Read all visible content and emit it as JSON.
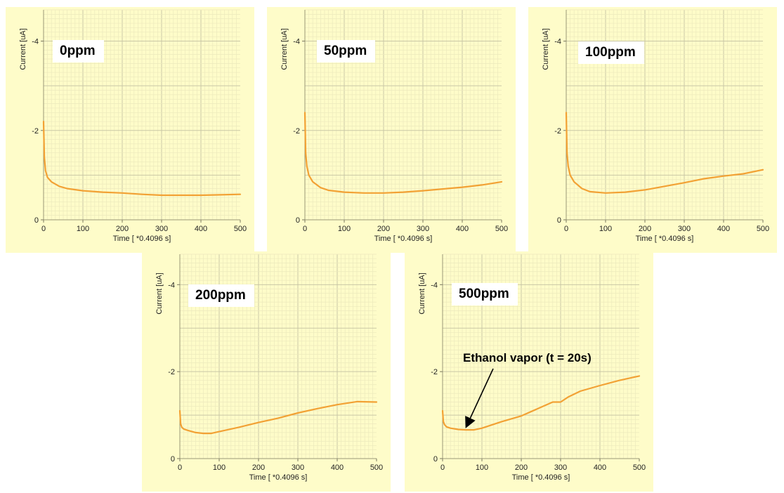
{
  "chart_data": [
    {
      "type": "line",
      "panel_label": "0ppm",
      "xlabel": "Time [ *0.4096 s]",
      "ylabel": "Current [uA]",
      "xlim": [
        0,
        500
      ],
      "ylim": [
        0,
        -4.7
      ],
      "xticks": [
        0,
        100,
        200,
        300,
        400,
        500
      ],
      "yticks": [
        0,
        -2,
        -4
      ],
      "xtick_labels": [
        "0",
        "100",
        "200",
        "300",
        "400",
        "500"
      ],
      "ytick_labels": [
        "0",
        "-2",
        "-4"
      ],
      "grid": true,
      "line_color": "#f2a134",
      "series": [
        {
          "x": [
            0,
            2,
            5,
            10,
            20,
            40,
            60,
            100,
            150,
            200,
            250,
            300,
            350,
            400,
            450,
            500
          ],
          "y": [
            -2.2,
            -1.4,
            -1.1,
            -0.95,
            -0.85,
            -0.75,
            -0.7,
            -0.65,
            -0.62,
            -0.6,
            -0.57,
            -0.55,
            -0.55,
            -0.55,
            -0.56,
            -0.57
          ]
        }
      ]
    },
    {
      "type": "line",
      "panel_label": "50ppm",
      "xlabel": "Time [ *0.4096 s]",
      "ylabel": "Current [uA]",
      "xlim": [
        0,
        500
      ],
      "ylim": [
        0,
        -4.7
      ],
      "xticks": [
        0,
        100,
        200,
        300,
        400,
        500
      ],
      "yticks": [
        0,
        -2,
        -4
      ],
      "xtick_labels": [
        "0",
        "100",
        "200",
        "300",
        "400",
        "500"
      ],
      "ytick_labels": [
        "0",
        "-2",
        "-4"
      ],
      "grid": true,
      "line_color": "#f2a134",
      "series": [
        {
          "x": [
            0,
            2,
            5,
            10,
            20,
            40,
            60,
            100,
            150,
            200,
            250,
            300,
            350,
            400,
            450,
            500
          ],
          "y": [
            -2.4,
            -1.5,
            -1.2,
            -1.0,
            -0.85,
            -0.72,
            -0.66,
            -0.62,
            -0.6,
            -0.6,
            -0.62,
            -0.65,
            -0.69,
            -0.73,
            -0.78,
            -0.85
          ]
        }
      ]
    },
    {
      "type": "line",
      "panel_label": "100ppm",
      "xlabel": "Time [ *0.4096 s]",
      "ylabel": "Current [uA]",
      "xlim": [
        0,
        500
      ],
      "ylim": [
        0,
        -4.7
      ],
      "xticks": [
        0,
        100,
        200,
        300,
        400,
        500
      ],
      "yticks": [
        0,
        -2,
        -4
      ],
      "xtick_labels": [
        "0",
        "100",
        "200",
        "300",
        "400",
        "500"
      ],
      "ytick_labels": [
        "0",
        "-2",
        "-4"
      ],
      "grid": true,
      "line_color": "#f2a134",
      "series": [
        {
          "x": [
            0,
            2,
            5,
            10,
            20,
            40,
            60,
            100,
            150,
            200,
            250,
            300,
            350,
            400,
            450,
            500
          ],
          "y": [
            -2.4,
            -1.5,
            -1.2,
            -1.0,
            -0.85,
            -0.7,
            -0.63,
            -0.6,
            -0.62,
            -0.67,
            -0.75,
            -0.83,
            -0.92,
            -0.98,
            -1.03,
            -1.12
          ]
        }
      ]
    },
    {
      "type": "line",
      "panel_label": "200ppm",
      "xlabel": "Time [ *0.4096 s]",
      "ylabel": "Current [uA]",
      "xlim": [
        0,
        500
      ],
      "ylim": [
        0,
        -4.7
      ],
      "xticks": [
        0,
        100,
        200,
        300,
        400,
        500
      ],
      "yticks": [
        0,
        -2,
        -4
      ],
      "xtick_labels": [
        "0",
        "100",
        "200",
        "300",
        "400",
        "500"
      ],
      "ytick_labels": [
        "0",
        "-2",
        "-4"
      ],
      "grid": true,
      "line_color": "#f2a134",
      "series": [
        {
          "x": [
            0,
            2,
            5,
            10,
            20,
            40,
            60,
            80,
            100,
            150,
            200,
            250,
            300,
            350,
            400,
            450,
            500
          ],
          "y": [
            -1.1,
            -0.8,
            -0.72,
            -0.68,
            -0.65,
            -0.6,
            -0.58,
            -0.58,
            -0.62,
            -0.72,
            -0.83,
            -0.93,
            -1.05,
            -1.15,
            -1.24,
            -1.31,
            -1.3
          ]
        }
      ]
    },
    {
      "type": "line",
      "panel_label": "500ppm",
      "xlabel": "Time [ *0.4096 s]",
      "ylabel": "Current [uA]",
      "xlim": [
        0,
        500
      ],
      "ylim": [
        0,
        -4.7
      ],
      "xticks": [
        0,
        100,
        200,
        300,
        400,
        500
      ],
      "yticks": [
        0,
        -2,
        -4
      ],
      "xtick_labels": [
        "0",
        "100",
        "200",
        "300",
        "400",
        "500"
      ],
      "ytick_labels": [
        "0",
        "-2",
        "-4"
      ],
      "grid": true,
      "line_color": "#f2a134",
      "annotation": {
        "text": "Ethanol vapor (t = 20s)",
        "x": 60,
        "y": -0.65
      },
      "series": [
        {
          "x": [
            0,
            2,
            5,
            10,
            20,
            40,
            60,
            80,
            100,
            150,
            200,
            250,
            280,
            300,
            320,
            350,
            400,
            450,
            500
          ],
          "y": [
            -1.1,
            -0.85,
            -0.78,
            -0.73,
            -0.7,
            -0.67,
            -0.66,
            -0.66,
            -0.7,
            -0.85,
            -0.98,
            -1.18,
            -1.3,
            -1.3,
            -1.42,
            -1.55,
            -1.68,
            -1.8,
            -1.9
          ]
        }
      ]
    }
  ]
}
